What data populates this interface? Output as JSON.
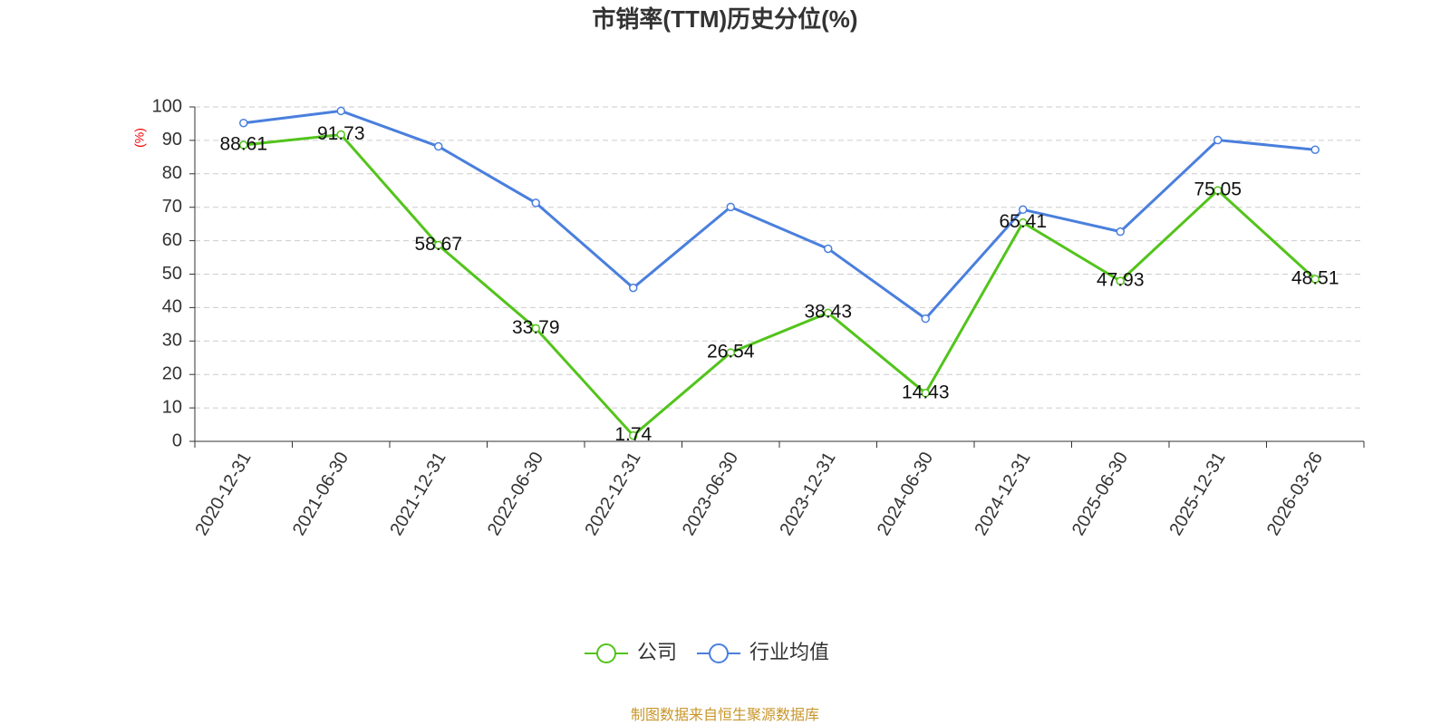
{
  "chart_data": {
    "type": "line",
    "title": "市销率(TTM)历史分位(%)",
    "y_label": "(%)",
    "categories": [
      "2020-12-31",
      "2021-06-30",
      "2021-12-31",
      "2022-06-30",
      "2022-12-31",
      "2023-06-30",
      "2023-12-31",
      "2024-06-30",
      "2024-12-31",
      "2025-06-30",
      "2025-12-31",
      "2026-03-26"
    ],
    "series": [
      {
        "name": "公司",
        "color": "#52c41a",
        "values": [
          88.61,
          91.73,
          58.67,
          33.79,
          1.74,
          26.54,
          38.43,
          14.43,
          65.41,
          47.93,
          75.05,
          48.51
        ],
        "show_labels": true
      },
      {
        "name": "行业均值",
        "color": "#4a7fdd",
        "values": [
          95.2,
          98.8,
          88.2,
          71.3,
          45.9,
          70.1,
          57.6,
          36.7,
          69.3,
          62.7,
          90.1,
          87.2
        ],
        "show_labels": false
      }
    ],
    "ylim": [
      0,
      100
    ],
    "yticks": [
      0,
      10,
      20,
      30,
      40,
      50,
      60,
      70,
      80,
      90,
      100
    ],
    "grid": true,
    "source": "制图数据来自恒生聚源数据库"
  }
}
